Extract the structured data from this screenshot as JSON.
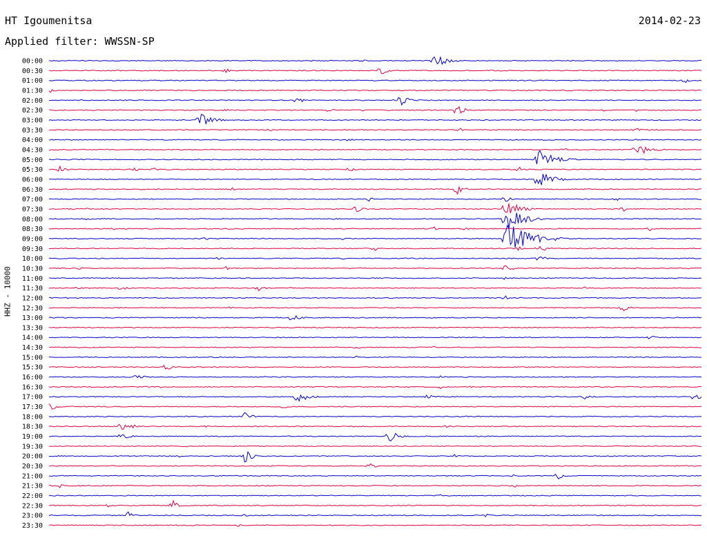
{
  "header": {
    "station": "HT Igoumenitsa",
    "date": "2014-02-23",
    "filter_label": "Applied filter: WWSSN-SP"
  },
  "chart_data": {
    "type": "line",
    "title": "HT Igoumenitsa",
    "subtitle": "Applied filter: WWSSN-SP",
    "ylabel": "HHZ - 10000",
    "xlabel": "",
    "grid": false,
    "colors": {
      "even": "#0000cc",
      "odd": "#e0003c"
    },
    "series": [
      {
        "time": "00:00",
        "events": [
          [
            0.085,
            0.8
          ],
          [
            0.305,
            1.5
          ],
          [
            0.48,
            3
          ],
          [
            0.405,
            2
          ],
          [
            0.59,
            12
          ],
          [
            0.8,
            1
          ]
        ]
      },
      {
        "time": "00:30",
        "events": [
          [
            0.27,
            5
          ],
          [
            0.508,
            7
          ],
          [
            0.585,
            2
          ]
        ]
      },
      {
        "time": "01:00",
        "events": [
          [
            0.97,
            7
          ],
          [
            0.14,
            1
          ]
        ]
      },
      {
        "time": "01:30",
        "events": [
          [
            0.0,
            5
          ],
          [
            0.305,
            2
          ],
          [
            0.71,
            2
          ],
          [
            0.8,
            2
          ]
        ]
      },
      {
        "time": "02:00",
        "events": [
          [
            0.38,
            6
          ],
          [
            0.54,
            8
          ],
          [
            0.05,
            1
          ]
        ]
      },
      {
        "time": "02:30",
        "events": [
          [
            0.27,
            3
          ],
          [
            0.43,
            4
          ],
          [
            0.48,
            2
          ],
          [
            0.625,
            8
          ],
          [
            0.85,
            2
          ],
          [
            0.9,
            2
          ]
        ]
      },
      {
        "time": "03:00",
        "events": [
          [
            0.23,
            12
          ],
          [
            0.08,
            1
          ]
        ]
      },
      {
        "time": "03:30",
        "events": [
          [
            0.34,
            2
          ],
          [
            0.63,
            3
          ],
          [
            0.9,
            4
          ]
        ]
      },
      {
        "time": "04:00",
        "events": [
          [
            0.46,
            3
          ],
          [
            0.9,
            1.5
          ]
        ]
      },
      {
        "time": "04:30",
        "events": [
          [
            0.0,
            1.5
          ],
          [
            0.79,
            3
          ],
          [
            0.9,
            12
          ]
        ]
      },
      {
        "time": "05:00",
        "events": [
          [
            0.01,
            2
          ],
          [
            0.06,
            2
          ],
          [
            0.75,
            16
          ]
        ]
      },
      {
        "time": "05:30",
        "events": [
          [
            0.015,
            6
          ],
          [
            0.13,
            4
          ],
          [
            0.16,
            4
          ],
          [
            0.46,
            5
          ],
          [
            0.72,
            4
          ]
        ]
      },
      {
        "time": "06:00",
        "events": [
          [
            0.3,
            1
          ],
          [
            0.6,
            1
          ],
          [
            0.75,
            14
          ]
        ]
      },
      {
        "time": "06:30",
        "events": [
          [
            0.28,
            3
          ],
          [
            0.625,
            8
          ],
          [
            0.14,
            2
          ]
        ]
      },
      {
        "time": "07:00",
        "events": [
          [
            0.49,
            4
          ],
          [
            0.7,
            5
          ],
          [
            0.87,
            3
          ]
        ]
      },
      {
        "time": "07:30",
        "events": [
          [
            0.06,
            2
          ],
          [
            0.47,
            6
          ],
          [
            0.7,
            14
          ],
          [
            0.88,
            4
          ]
        ]
      },
      {
        "time": "08:00",
        "events": [
          [
            0.06,
            3
          ],
          [
            0.44,
            2
          ],
          [
            0.7,
            18
          ]
        ]
      },
      {
        "time": "08:30",
        "events": [
          [
            0.1,
            2
          ],
          [
            0.59,
            3
          ],
          [
            0.64,
            3
          ],
          [
            0.92,
            4
          ]
        ]
      },
      {
        "time": "09:00",
        "events": [
          [
            0.7,
            26
          ],
          [
            0.24,
            3
          ],
          [
            0.45,
            3
          ]
        ]
      },
      {
        "time": "09:30",
        "events": [
          [
            0.5,
            3
          ],
          [
            0.72,
            5
          ],
          [
            0.75,
            8
          ]
        ]
      },
      {
        "time": "10:00",
        "events": [
          [
            0.26,
            3
          ],
          [
            0.45,
            2
          ],
          [
            0.75,
            6
          ],
          [
            0.78,
            2
          ]
        ]
      },
      {
        "time": "10:30",
        "events": [
          [
            0.05,
            3
          ],
          [
            0.27,
            4
          ],
          [
            0.7,
            7
          ],
          [
            0.9,
            2
          ]
        ]
      },
      {
        "time": "11:00",
        "events": [
          [
            0.3,
            1
          ],
          [
            0.7,
            4
          ]
        ]
      },
      {
        "time": "11:30",
        "events": [
          [
            0.045,
            4
          ],
          [
            0.11,
            5
          ],
          [
            0.32,
            6
          ],
          [
            0.37,
            2
          ],
          [
            0.82,
            3
          ]
        ]
      },
      {
        "time": "12:00",
        "events": [
          [
            0.03,
            2
          ],
          [
            0.7,
            3
          ]
        ]
      },
      {
        "time": "12:30",
        "events": [
          [
            0.28,
            3
          ],
          [
            0.88,
            6
          ]
        ]
      },
      {
        "time": "13:00",
        "events": [
          [
            0.37,
            8
          ],
          [
            0.47,
            2
          ],
          [
            0.59,
            2
          ]
        ]
      },
      {
        "time": "13:30",
        "events": [
          [
            0.2,
            2
          ],
          [
            0.45,
            2
          ]
        ]
      },
      {
        "time": "14:00",
        "events": [
          [
            0.67,
            2
          ],
          [
            0.92,
            5
          ]
        ]
      },
      {
        "time": "14:30",
        "events": [
          [
            0.47,
            4
          ],
          [
            0.59,
            2
          ]
        ]
      },
      {
        "time": "15:00",
        "events": [
          [
            0.035,
            2
          ],
          [
            0.47,
            3
          ],
          [
            0.73,
            2
          ]
        ]
      },
      {
        "time": "15:30",
        "events": [
          [
            0.18,
            6
          ],
          [
            0.44,
            2
          ]
        ]
      },
      {
        "time": "16:00",
        "events": [
          [
            0.135,
            6
          ],
          [
            0.33,
            2
          ],
          [
            0.6,
            2
          ]
        ]
      },
      {
        "time": "16:30",
        "events": [
          [
            0.17,
            3
          ],
          [
            0.6,
            3
          ],
          [
            0.65,
            2
          ]
        ]
      },
      {
        "time": "17:00",
        "events": [
          [
            0.38,
            11
          ],
          [
            0.58,
            6
          ],
          [
            0.82,
            6
          ],
          [
            0.99,
            6
          ]
        ]
      },
      {
        "time": "17:30",
        "events": [
          [
            0.0,
            7
          ],
          [
            0.035,
            3
          ],
          [
            0.36,
            4
          ]
        ]
      },
      {
        "time": "18:00",
        "events": [
          [
            0.3,
            7
          ],
          [
            0.16,
            2
          ],
          [
            0.69,
            2
          ]
        ]
      },
      {
        "time": "18:30",
        "events": [
          [
            0.11,
            10
          ],
          [
            0.24,
            3
          ],
          [
            0.61,
            3
          ]
        ]
      },
      {
        "time": "19:00",
        "events": [
          [
            0.11,
            8
          ],
          [
            0.52,
            10
          ]
        ]
      },
      {
        "time": "19:30",
        "events": [
          [
            0.21,
            2
          ],
          [
            0.68,
            3
          ]
        ]
      },
      {
        "time": "20:00",
        "events": [
          [
            0.3,
            9
          ],
          [
            0.62,
            4
          ],
          [
            0.2,
            2
          ]
        ]
      },
      {
        "time": "20:30",
        "events": [
          [
            0.49,
            6
          ]
        ]
      },
      {
        "time": "21:00",
        "events": [
          [
            0.71,
            3
          ],
          [
            0.78,
            6
          ]
        ]
      },
      {
        "time": "21:30",
        "events": [
          [
            0.015,
            4
          ],
          [
            0.43,
            2
          ],
          [
            0.71,
            5
          ]
        ]
      },
      {
        "time": "22:00",
        "events": [
          [
            0.04,
            2
          ],
          [
            0.6,
            2
          ]
        ]
      },
      {
        "time": "22:30",
        "events": [
          [
            0.09,
            3
          ],
          [
            0.19,
            8
          ],
          [
            0.82,
            2
          ]
        ]
      },
      {
        "time": "23:00",
        "events": [
          [
            0.12,
            6
          ],
          [
            0.3,
            3
          ],
          [
            0.67,
            4
          ]
        ]
      },
      {
        "time": "23:30",
        "events": [
          [
            0.29,
            3
          ]
        ]
      }
    ]
  }
}
